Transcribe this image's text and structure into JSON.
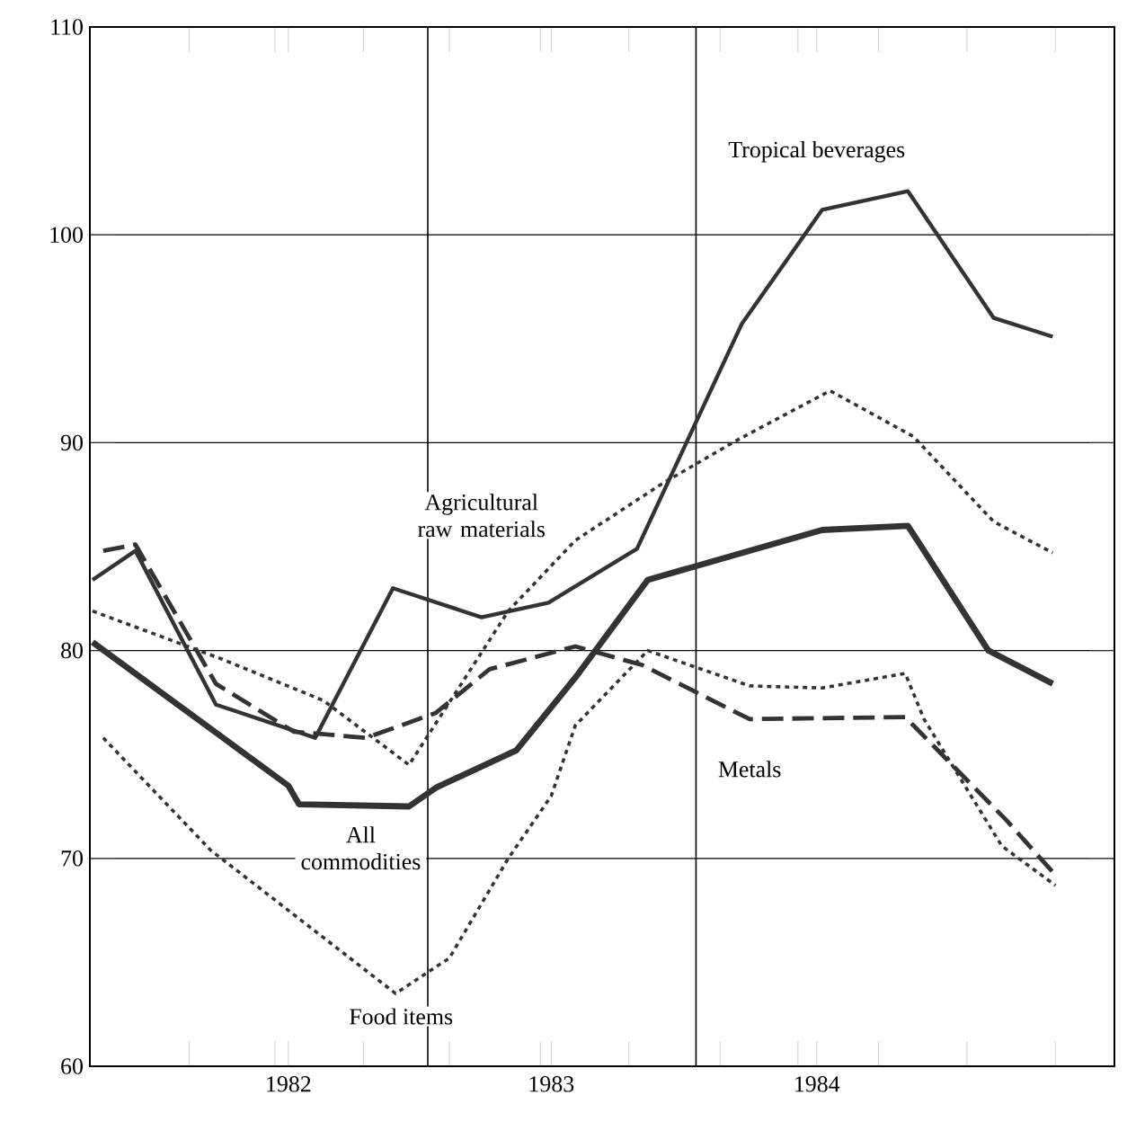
{
  "chart_data": {
    "type": "line",
    "xlim": [
      1981.74,
      1985.56
    ],
    "ylim": [
      60,
      110
    ],
    "xticks": [
      {
        "value": 1982.11,
        "label": null
      },
      {
        "value": 1982.43,
        "label": null
      },
      {
        "value": 1982.48,
        "label": "1982"
      },
      {
        "value": 1982.76,
        "label": null
      },
      {
        "value": 1983.08,
        "label": null
      },
      {
        "value": 1983.42,
        "label": null
      },
      {
        "value": 1983.46,
        "label": "1983"
      },
      {
        "value": 1983.75,
        "label": null
      },
      {
        "value": 1984.09,
        "label": null
      },
      {
        "value": 1984.38,
        "label": null
      },
      {
        "value": 1984.45,
        "label": "1984"
      },
      {
        "value": 1984.68,
        "label": null
      },
      {
        "value": 1985.01,
        "label": null
      },
      {
        "value": 1985.34,
        "label": null
      }
    ],
    "yticks": [
      60,
      70,
      80,
      90,
      100,
      110
    ],
    "grid": "y",
    "legend": false,
    "ref_lines": [
      {
        "axis": "x",
        "value": 1983.0
      },
      {
        "axis": "x",
        "value": 1984.0
      }
    ],
    "series": [
      {
        "name": "Tropical beverages",
        "color": "#333333",
        "line_style": "solid",
        "x": [
          1981.75,
          1981.91,
          1982.21,
          1982.58,
          1982.87,
          1983.2,
          1983.45,
          1983.78,
          1984.17,
          1984.47,
          1984.79,
          1985.11,
          1985.33
        ],
        "values": [
          83.4,
          84.8,
          77.4,
          75.8,
          83.0,
          81.6,
          82.3,
          84.9,
          95.7,
          101.2,
          102.1,
          96.0,
          95.1
        ]
      },
      {
        "name": "Agricultural raw materials",
        "color": "#333333",
        "line_style": "dotted",
        "x": [
          1981.75,
          1982.23,
          1982.61,
          1982.93,
          1983.01,
          1983.3,
          1983.55,
          1983.87,
          1984.15,
          1984.5,
          1984.81,
          1985.11,
          1985.33
        ],
        "values": [
          81.9,
          79.6,
          77.6,
          74.5,
          76.1,
          81.9,
          85.3,
          88.0,
          90.1,
          92.5,
          90.3,
          86.2,
          84.7
        ]
      },
      {
        "name": "Metals",
        "color": "#333333",
        "line_style": "dashed",
        "x": [
          1981.79,
          1981.91,
          1982.21,
          1982.5,
          1982.77,
          1983.03,
          1983.23,
          1983.55,
          1983.8,
          1984.2,
          1984.78,
          1985.16,
          1985.34
        ],
        "values": [
          84.8,
          85.1,
          78.4,
          76.1,
          75.8,
          77.0,
          79.1,
          80.2,
          79.3,
          76.7,
          76.8,
          71.8,
          69.2
        ]
      },
      {
        "name": "All commodities",
        "color": "#333333",
        "line_style": "solid",
        "x": [
          1981.75,
          1982.48,
          1982.52,
          1982.93,
          1983.03,
          1983.33,
          1983.55,
          1983.82,
          1984.47,
          1984.79,
          1985.09,
          1985.33
        ],
        "values": [
          80.4,
          73.5,
          72.6,
          72.5,
          73.4,
          75.2,
          78.7,
          83.4,
          85.8,
          86.0,
          80.0,
          78.4
        ]
      },
      {
        "name": "Food items",
        "color": "#333333",
        "line_style": "dotted",
        "x": [
          1981.79,
          1982.19,
          1982.88,
          1983.08,
          1983.3,
          1983.46,
          1983.55,
          1983.82,
          1984.2,
          1984.47,
          1984.78,
          1984.85,
          1985.14,
          1985.34
        ],
        "values": [
          75.8,
          70.4,
          63.5,
          65.2,
          70.0,
          73.0,
          76.4,
          80.0,
          78.3,
          78.2,
          78.9,
          76.7,
          70.6,
          68.7
        ]
      }
    ]
  }
}
